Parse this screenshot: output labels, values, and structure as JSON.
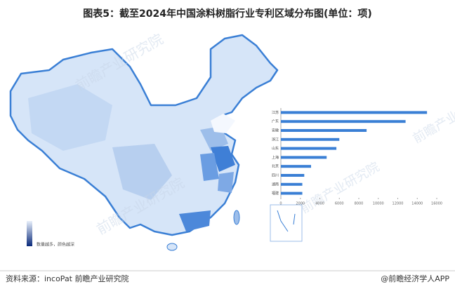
{
  "title": "图表5：截至2024年中国涂料树脂行业专利区域分布图(单位：项)",
  "map_legend": "数量越多，颜色越深",
  "watermark": "前瞻产业研究院",
  "footer": {
    "source": "资料来源：incoPat 前瞻产业研究院",
    "brand": "@前瞻经济学人APP"
  },
  "chart_data": {
    "type": "bar",
    "orientation": "horizontal",
    "categories": [
      "江苏",
      "广东",
      "安徽",
      "浙江",
      "山东",
      "上海",
      "北京",
      "四川",
      "湖南",
      "福建"
    ],
    "values": [
      15000,
      12800,
      8800,
      6000,
      5700,
      4700,
      3100,
      2400,
      2200,
      2200
    ],
    "color": "#3a7fd5",
    "xlim": [
      0,
      16000
    ],
    "xticks": [
      0,
      2000,
      4000,
      6000,
      8000,
      10000,
      12000,
      14000,
      16000
    ]
  }
}
